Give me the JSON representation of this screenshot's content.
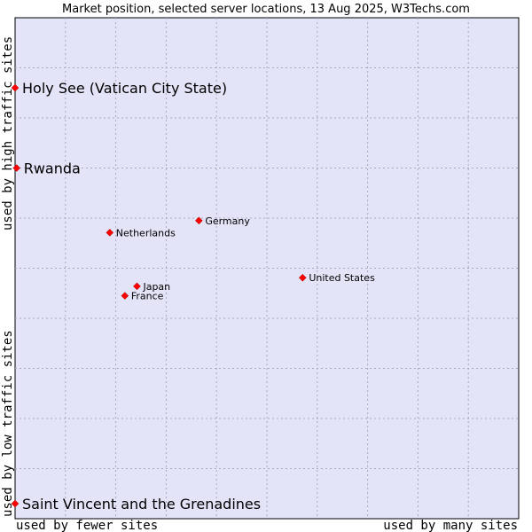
{
  "chart_data": {
    "type": "scatter",
    "title": "Market position, selected server locations, 13 Aug 2025, W3Techs.com",
    "x_label_low": "used by fewer sites",
    "x_label_high": "used by many sites",
    "y_label_low": "used by low traffic sites",
    "y_label_high": "used by high traffic sites",
    "xlim": [
      0,
      1
    ],
    "ylim": [
      0,
      1
    ],
    "grid": true,
    "point_color": "#ff0000",
    "plot_bg": "#e4e4f8",
    "points": [
      {
        "label": "Holy See (Vatican City State)",
        "x": 0.0,
        "y": 0.86,
        "size": "large"
      },
      {
        "label": "Rwanda",
        "x": 0.003,
        "y": 0.7,
        "size": "large"
      },
      {
        "label": "Germany",
        "x": 0.365,
        "y": 0.595,
        "size": "small"
      },
      {
        "label": "Netherlands",
        "x": 0.188,
        "y": 0.571,
        "size": "small"
      },
      {
        "label": "United States",
        "x": 0.571,
        "y": 0.481,
        "size": "small"
      },
      {
        "label": "Japan",
        "x": 0.242,
        "y": 0.464,
        "size": "small"
      },
      {
        "label": "France",
        "x": 0.218,
        "y": 0.445,
        "size": "small"
      },
      {
        "label": "Saint Vincent and the Grenadines",
        "x": 0.0,
        "y": 0.03,
        "size": "large"
      }
    ]
  }
}
